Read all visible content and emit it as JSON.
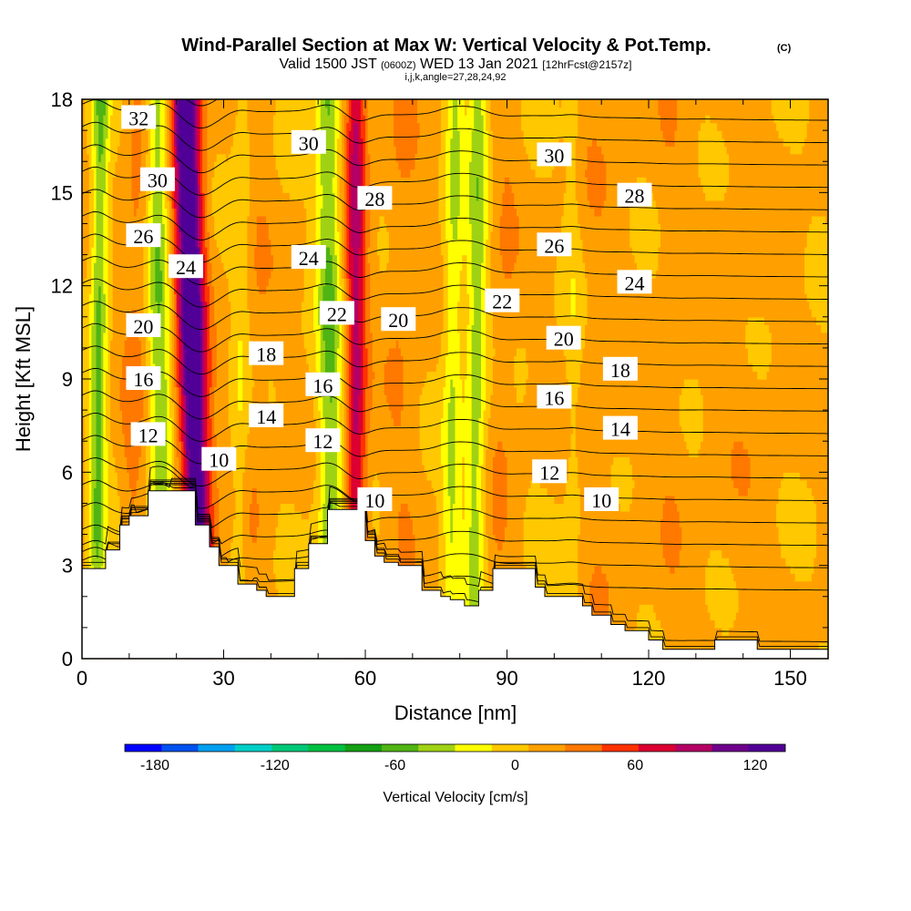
{
  "chart_data": {
    "type": "heatmap",
    "title": "Wind-Parallel Section at Max W: Vertical Velocity & Pot.Temp.",
    "title_mark": "(C)",
    "subtitle_parts": [
      "Valid 1500 JST",
      "(0600Z)",
      "WED 13 Jan 2021",
      "[12hrFcst@2157z]"
    ],
    "subtitle2": "i,j,k,angle=27,28,24,92",
    "xlabel": "Distance [nm]",
    "ylabel": "Height [Kft MSL]",
    "xlim": [
      0,
      158
    ],
    "ylim": [
      0,
      18
    ],
    "x_ticks": [
      "0",
      "30",
      "60",
      "90",
      "120",
      "150"
    ],
    "y_ticks": [
      "0",
      "3",
      "6",
      "9",
      "12",
      "15",
      "18"
    ],
    "colorbar": {
      "label": "Vertical Velocity [cm/s]",
      "ticks": [
        "-180",
        "-120",
        "-60",
        "0",
        "60",
        "120"
      ],
      "min": -195,
      "max": 135,
      "colors": [
        "#0000ff",
        "#0050f0",
        "#00a0f0",
        "#00d0c8",
        "#00c878",
        "#00c040",
        "#14a014",
        "#50b414",
        "#a0d214",
        "#ffff00",
        "#ffc800",
        "#ffa000",
        "#ff7800",
        "#ff3200",
        "#dc0032",
        "#b40064",
        "#6e008c",
        "#500096"
      ]
    },
    "terrain": [
      [
        0,
        2.9
      ],
      [
        5,
        3.5
      ],
      [
        8,
        4.3
      ],
      [
        10,
        4.6
      ],
      [
        14,
        5.4
      ],
      [
        22,
        5.4
      ],
      [
        24,
        4.3
      ],
      [
        27,
        3.6
      ],
      [
        29,
        3.0
      ],
      [
        33,
        2.4
      ],
      [
        37,
        2.2
      ],
      [
        39,
        2.0
      ],
      [
        42,
        2.0
      ],
      [
        45,
        2.9
      ],
      [
        48,
        3.7
      ],
      [
        52,
        4.8
      ],
      [
        57,
        4.8
      ],
      [
        60,
        3.8
      ],
      [
        62,
        3.3
      ],
      [
        64,
        3.1
      ],
      [
        67,
        3.0
      ],
      [
        72,
        2.2
      ],
      [
        76,
        2.0
      ],
      [
        78,
        1.9
      ],
      [
        81,
        1.7
      ],
      [
        84,
        2.2
      ],
      [
        87,
        2.9
      ],
      [
        94,
        2.9
      ],
      [
        96,
        2.3
      ],
      [
        98,
        2.0
      ],
      [
        103,
        2.0
      ],
      [
        106,
        1.7
      ],
      [
        108,
        1.4
      ],
      [
        112,
        1.1
      ],
      [
        115,
        0.9
      ],
      [
        120,
        0.6
      ],
      [
        123,
        0.3
      ],
      [
        127,
        0.3
      ],
      [
        133,
        0.3
      ],
      [
        134,
        0.6
      ],
      [
        139,
        0.6
      ],
      [
        143,
        0.3
      ],
      [
        150,
        0.3
      ],
      [
        158,
        0.6
      ]
    ],
    "updrafts": [
      {
        "x": 25,
        "x_top": 22,
        "w": 3.0,
        "amp": 135
      },
      {
        "x": 58,
        "x_top": 58,
        "w": 2.2,
        "amp": 75
      },
      {
        "x": 10,
        "x_top": 12,
        "w": 2.5,
        "amp": 20
      },
      {
        "x": 36,
        "x_top": 38,
        "w": 3.0,
        "amp": 10
      },
      {
        "x": 67,
        "x_top": 68,
        "w": 3.5,
        "amp": 12
      },
      {
        "x": 88,
        "x_top": 90,
        "w": 3.0,
        "amp": 12
      },
      {
        "x": 110,
        "x_top": 110,
        "w": 6.0,
        "amp": 8
      },
      {
        "x": 140,
        "x_top": 140,
        "w": 8.0,
        "amp": 6
      },
      {
        "x": 125,
        "x_top": 125,
        "w": 3.5,
        "amp": 8
      }
    ],
    "downdrafts": [
      {
        "x": 3,
        "x_top": 4,
        "w": 1.8,
        "amp": -60
      },
      {
        "x": 17,
        "x_top": 16,
        "w": 2.4,
        "amp": -55
      },
      {
        "x": 53,
        "x_top": 52,
        "w": 2.6,
        "amp": -60
      },
      {
        "x": 78,
        "x_top": 79,
        "w": 2.0,
        "amp": -40
      },
      {
        "x": 33,
        "x_top": 34,
        "w": 1.8,
        "amp": -20
      },
      {
        "x": 83,
        "x_top": 84,
        "w": 2.2,
        "amp": -50
      },
      {
        "x": 104,
        "x_top": 104,
        "w": 1.8,
        "amp": -15
      }
    ],
    "theta_levels": [
      9,
      10,
      11,
      12,
      13,
      14,
      15,
      16,
      17,
      18,
      19,
      20,
      21,
      22,
      23,
      24,
      25,
      26,
      27,
      28,
      29,
      30,
      31,
      32,
      33
    ],
    "contour_labels": [
      {
        "x": 12,
        "y": 17.4,
        "text": "32"
      },
      {
        "x": 16,
        "y": 15.4,
        "text": "30"
      },
      {
        "x": 13,
        "y": 13.6,
        "text": "26"
      },
      {
        "x": 22,
        "y": 12.6,
        "text": "24"
      },
      {
        "x": 13,
        "y": 10.7,
        "text": "20"
      },
      {
        "x": 13,
        "y": 9.0,
        "text": "16"
      },
      {
        "x": 14,
        "y": 7.2,
        "text": "12"
      },
      {
        "x": 29,
        "y": 6.4,
        "text": "10"
      },
      {
        "x": 48,
        "y": 16.6,
        "text": "30"
      },
      {
        "x": 62,
        "y": 14.8,
        "text": "28"
      },
      {
        "x": 48,
        "y": 12.9,
        "text": "24"
      },
      {
        "x": 54,
        "y": 11.1,
        "text": "22"
      },
      {
        "x": 67,
        "y": 10.9,
        "text": "20"
      },
      {
        "x": 39,
        "y": 9.8,
        "text": "18"
      },
      {
        "x": 39,
        "y": 7.8,
        "text": "14"
      },
      {
        "x": 51,
        "y": 8.8,
        "text": "16"
      },
      {
        "x": 51,
        "y": 7.0,
        "text": "12"
      },
      {
        "x": 62,
        "y": 5.1,
        "text": "10"
      },
      {
        "x": 89,
        "y": 11.5,
        "text": "22"
      },
      {
        "x": 100,
        "y": 16.2,
        "text": "30"
      },
      {
        "x": 117,
        "y": 14.9,
        "text": "28"
      },
      {
        "x": 100,
        "y": 13.3,
        "text": "26"
      },
      {
        "x": 117,
        "y": 12.1,
        "text": "24"
      },
      {
        "x": 102,
        "y": 10.3,
        "text": "20"
      },
      {
        "x": 114,
        "y": 9.3,
        "text": "18"
      },
      {
        "x": 100,
        "y": 8.4,
        "text": "16"
      },
      {
        "x": 114,
        "y": 7.4,
        "text": "14"
      },
      {
        "x": 99,
        "y": 6.0,
        "text": "12"
      },
      {
        "x": 110,
        "y": 5.1,
        "text": "10"
      }
    ]
  }
}
